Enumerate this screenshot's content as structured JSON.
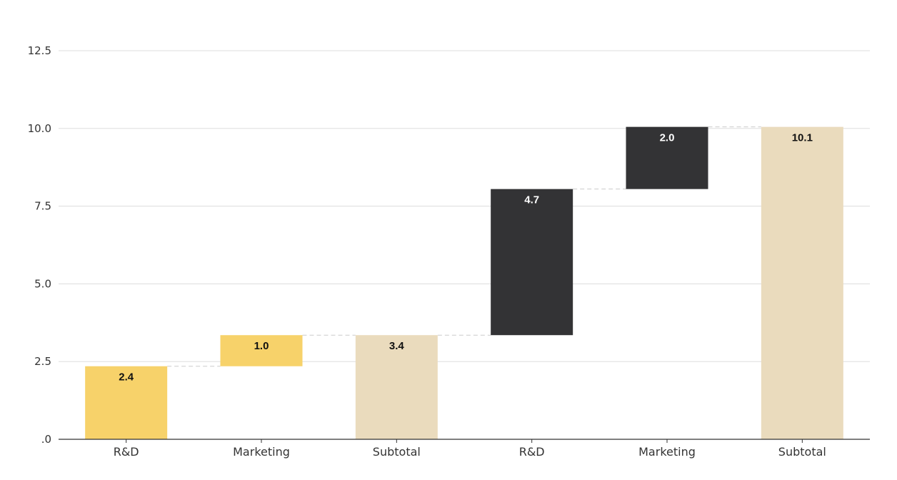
{
  "chart_data": {
    "type": "bar",
    "subtype": "waterfall",
    "title": "",
    "xlabel": "",
    "ylabel": "",
    "ylim": [
      0,
      12.5
    ],
    "yticks": [
      {
        "value": 0,
        "label": ".0"
      },
      {
        "value": 2.5,
        "label": "2.5"
      },
      {
        "value": 5,
        "label": "5.0"
      },
      {
        "value": 7.5,
        "label": "7.5"
      },
      {
        "value": 10,
        "label": "10.0"
      },
      {
        "value": 12.5,
        "label": "12.5"
      }
    ],
    "grid": true,
    "categories": [
      "R&D",
      "Marketing",
      "Subtotal",
      "R&D",
      "Marketing",
      "Subtotal"
    ],
    "steps": [
      {
        "category": "R&D",
        "kind": "increase",
        "value": 2.4,
        "start": 0,
        "end": 2.35,
        "label": "2.4",
        "color": "#F7D26A",
        "label_color": "#111111"
      },
      {
        "category": "Marketing",
        "kind": "increase",
        "value": 1.0,
        "start": 2.35,
        "end": 3.35,
        "label": "1.0",
        "color": "#F7D26A",
        "label_color": "#111111"
      },
      {
        "category": "Subtotal",
        "kind": "total",
        "value": 3.4,
        "start": 0,
        "end": 3.35,
        "label": "3.4",
        "color": "#EADBBD",
        "label_color": "#111111"
      },
      {
        "category": "R&D",
        "kind": "increase",
        "value": 4.7,
        "start": 3.35,
        "end": 8.05,
        "label": "4.7",
        "color": "#333335",
        "label_color": "#ffffff"
      },
      {
        "category": "Marketing",
        "kind": "increase",
        "value": 2.0,
        "start": 8.05,
        "end": 10.05,
        "label": "2.0",
        "color": "#333335",
        "label_color": "#ffffff"
      },
      {
        "category": "Subtotal",
        "kind": "total",
        "value": 10.1,
        "start": 0,
        "end": 10.05,
        "label": "10.1",
        "color": "#EADBBD",
        "label_color": "#111111"
      }
    ],
    "colors": {
      "gridline": "#dddddd",
      "axis": "#333333",
      "connector": "#cccccc"
    }
  }
}
